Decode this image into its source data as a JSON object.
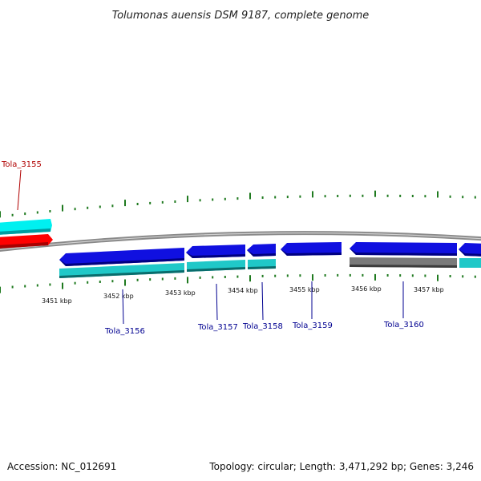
{
  "title": "Tolumonas auensis DSM 9187, complete genome",
  "footer": {
    "accession": "Accession: NC_012691",
    "summary": "Topology: circular; Length: 3,471,292 bp; Genes: 3,246"
  },
  "colors": {
    "backbone": "#8a8a8a",
    "tick": "#1f7a1f",
    "cyan_gene": "#00f0f0",
    "red_gene": "#ff0000",
    "blue_gene": "#1010e0",
    "teal_gene": "#20c8c8",
    "gray_gene": "#7a7a7a",
    "label_red": "#b00000",
    "label_blue": "#000090"
  },
  "scale": {
    "unit": "kbp",
    "labels": [
      "3451 kbp",
      "3452 kbp",
      "3453 kbp",
      "3454 kbp",
      "3455 kbp",
      "3456 kbp",
      "3457 kbp"
    ]
  },
  "genes": [
    {
      "name": "Tola_3155",
      "color": "label_red"
    },
    {
      "name": "Tola_3156",
      "color": "label_blue"
    },
    {
      "name": "Tola_3157",
      "color": "label_blue"
    },
    {
      "name": "Tola_3158",
      "color": "label_blue"
    },
    {
      "name": "Tola_3159",
      "color": "label_blue"
    },
    {
      "name": "Tola_3160",
      "color": "label_blue"
    }
  ]
}
